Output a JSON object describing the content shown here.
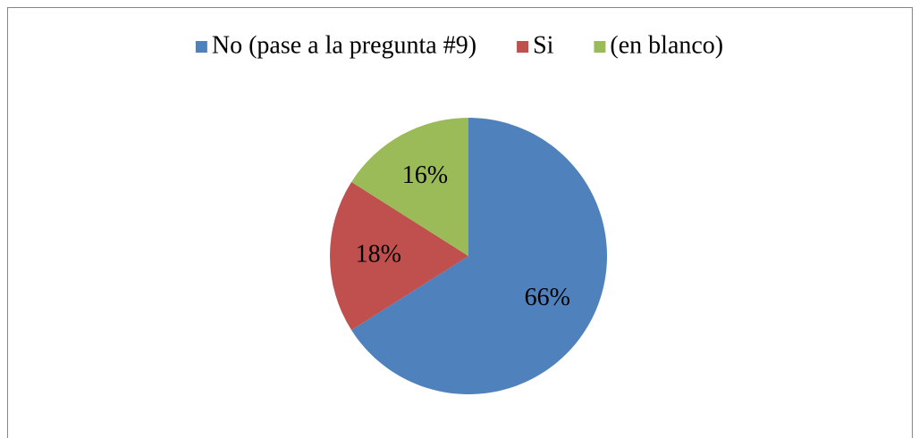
{
  "chart_data": {
    "type": "pie",
    "categories": [
      "No (pase a la pregunta #9)",
      "Si",
      "(en blanco)"
    ],
    "values": [
      66,
      18,
      16
    ],
    "value_labels": [
      "66%",
      "18%",
      "16%"
    ],
    "colors": [
      "#4f81bd",
      "#c0504d",
      "#9bbb59"
    ],
    "legend": "top"
  }
}
